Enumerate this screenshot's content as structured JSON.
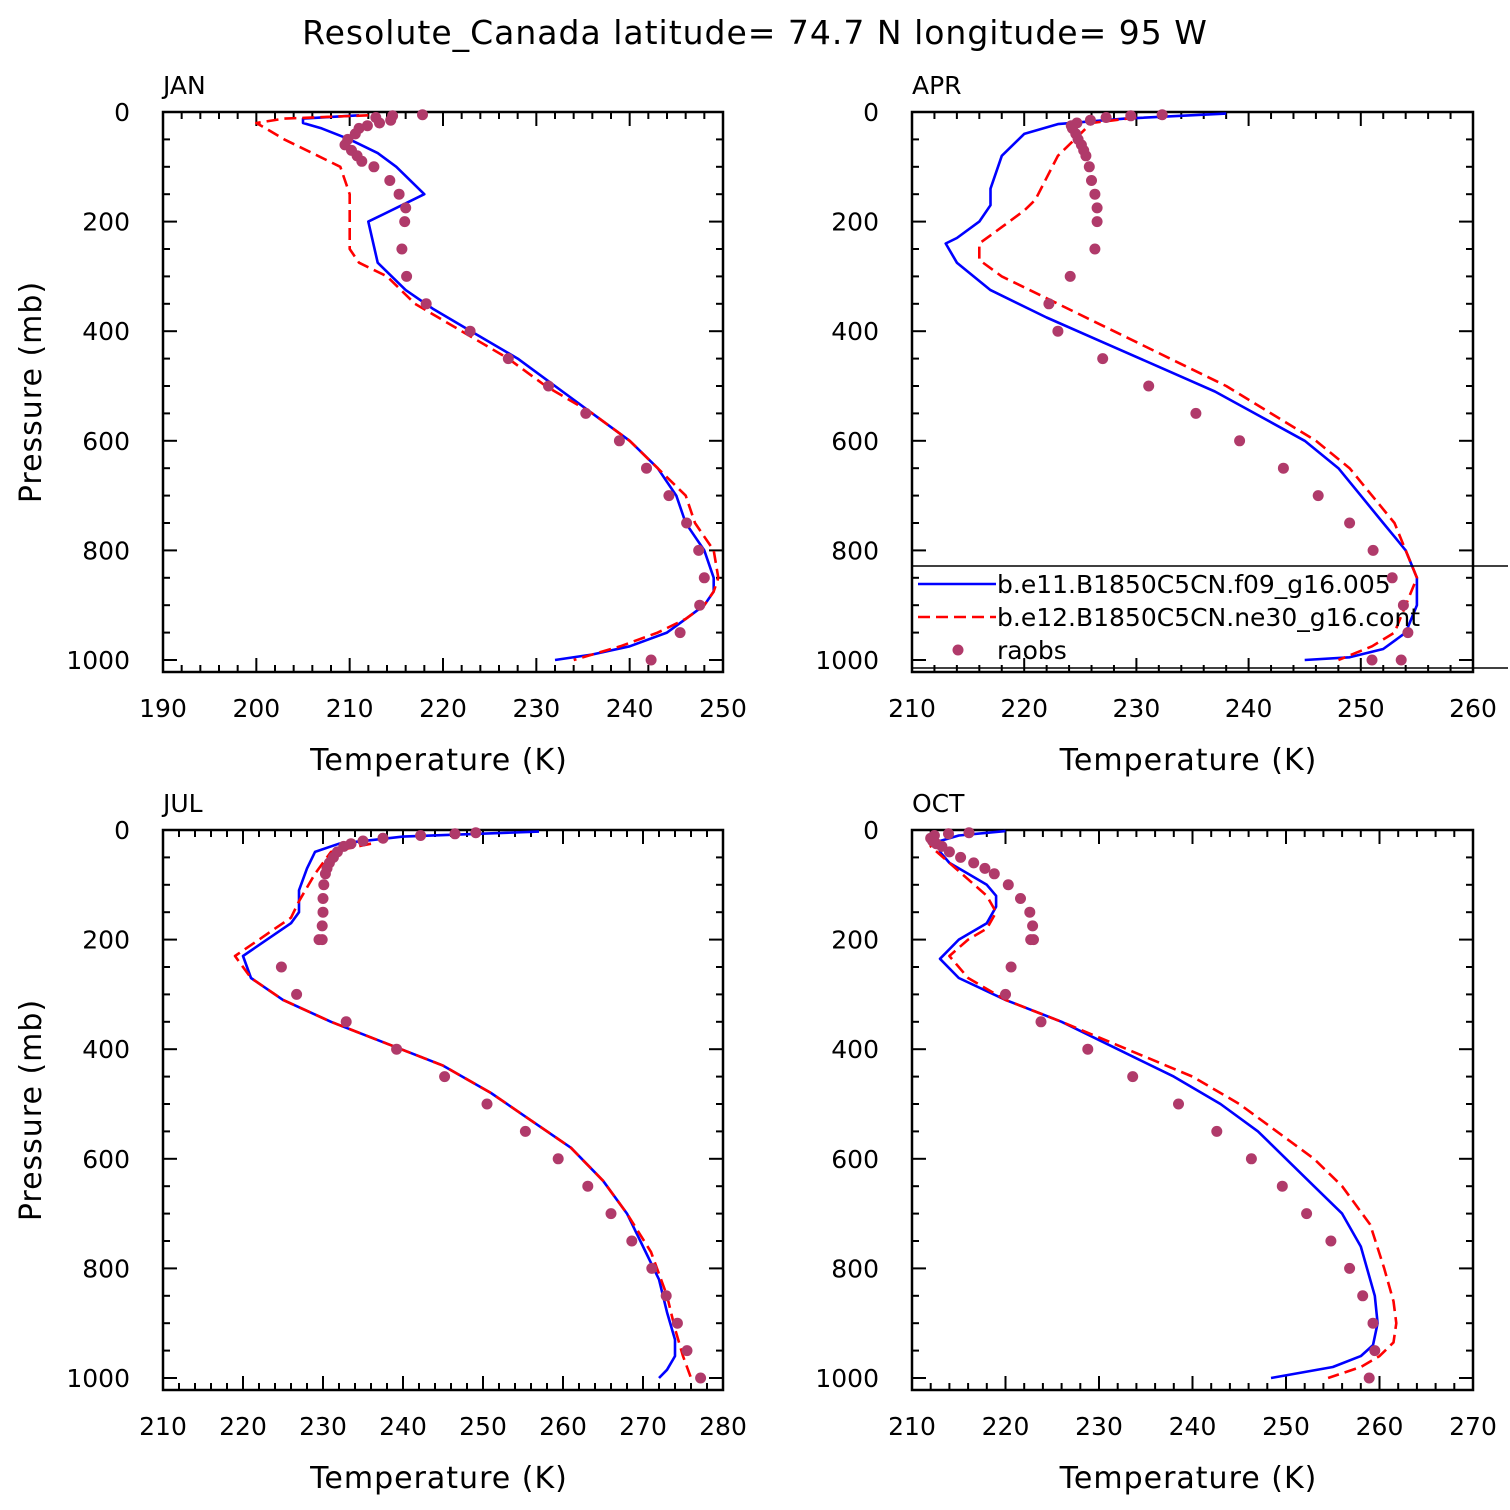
{
  "title": "Resolute_Canada  latitude= 74.7 N longitude= 95 W",
  "colors": {
    "model1": "#0000ff",
    "model2": "#ff0000",
    "raobs": "#b03a6a",
    "axis": "#000000"
  },
  "legend": {
    "items": [
      {
        "label": "b.e11.B1850C5CN.f09_g16.005",
        "style": "solid",
        "color": "#0000ff"
      },
      {
        "label": "b.e12.B1850C5CN.ne30_g16.cont",
        "style": "dashed",
        "color": "#ff0000"
      },
      {
        "label": "raobs",
        "style": "markers",
        "color": "#b03a6a"
      }
    ],
    "placement": "lower-right of APR panel"
  },
  "chart_data": [
    {
      "type": "line",
      "panel": "JAN",
      "xlabel": "Temperature (K)",
      "ylabel": "Pressure (mb)",
      "xlim": [
        190,
        250
      ],
      "ylim": [
        1000,
        0
      ],
      "xticks": [
        190,
        200,
        210,
        220,
        230,
        240,
        250
      ],
      "yticks": [
        0,
        200,
        400,
        600,
        800,
        1000
      ],
      "series": [
        {
          "name": "b.e11.B1850C5CN.f09_g16.005",
          "x": [
            211,
            205,
            205,
            207,
            210,
            213,
            215,
            218,
            212,
            213,
            216,
            219,
            223,
            228,
            232,
            236,
            240,
            243,
            245,
            246,
            247,
            248,
            249,
            249,
            248,
            246,
            244,
            240,
            236,
            232
          ],
          "y": [
            6,
            12,
            20,
            30,
            50,
            75,
            100,
            150,
            200,
            275,
            325,
            360,
            400,
            450,
            500,
            550,
            600,
            650,
            700,
            750,
            775,
            800,
            850,
            875,
            900,
            925,
            950,
            975,
            990,
            1000
          ]
        },
        {
          "name": "b.e12.B1850C5CN.ne30_g16.cont",
          "x": [
            212,
            203,
            200,
            201,
            203,
            206,
            209,
            210,
            210,
            210,
            211,
            214,
            217,
            222,
            227,
            231,
            236,
            240,
            243,
            246,
            247,
            248,
            249,
            249.5,
            249,
            248,
            246,
            243,
            239,
            234
          ],
          "y": [
            6,
            12,
            20,
            30,
            50,
            75,
            100,
            150,
            200,
            250,
            275,
            300,
            350,
            400,
            450,
            500,
            550,
            600,
            650,
            700,
            750,
            775,
            800,
            850,
            875,
            900,
            925,
            950,
            975,
            1000
          ]
        }
      ],
      "raobs": {
        "x": [
          217.8,
          214.6,
          212.8,
          214.4,
          213.2,
          211.9,
          211.0,
          210.6,
          209.8,
          209.5,
          210.2,
          210.8,
          211.3,
          212.6,
          214.3,
          215.3,
          216.0,
          215.9,
          215.6,
          216.1,
          218.2,
          222.9,
          227.0,
          231.3,
          235.3,
          238.9,
          241.8,
          244.2,
          246.1,
          247.4,
          248.0,
          247.5,
          245.4,
          242.3
        ],
        "y": [
          5,
          7,
          10,
          15,
          20,
          25,
          30,
          40,
          50,
          60,
          70,
          80,
          90,
          100,
          125,
          150,
          175,
          200,
          250,
          300,
          350,
          400,
          450,
          500,
          550,
          600,
          650,
          700,
          750,
          800,
          850,
          900,
          950,
          1000
        ]
      }
    },
    {
      "type": "line",
      "panel": "APR",
      "xlabel": "Temperature (K)",
      "ylabel": "",
      "xlim": [
        210,
        260
      ],
      "ylim": [
        1000,
        0
      ],
      "xticks": [
        210,
        220,
        230,
        240,
        250,
        260
      ],
      "yticks": [
        0,
        200,
        400,
        600,
        800,
        1000
      ],
      "series": [
        {
          "name": "b.e11.B1850C5CN.f09_g16.005",
          "x": [
            238,
            229,
            223,
            220,
            218,
            217,
            217,
            216,
            214,
            213,
            214,
            217,
            222,
            227,
            232,
            237,
            241,
            245,
            248,
            250,
            252,
            253,
            254,
            255,
            255,
            254,
            252,
            249,
            245
          ],
          "y": [
            3,
            12,
            22,
            40,
            80,
            140,
            170,
            200,
            230,
            240,
            275,
            325,
            375,
            420,
            465,
            510,
            555,
            600,
            650,
            700,
            750,
            775,
            800,
            850,
            900,
            950,
            980,
            995,
            1000
          ]
        },
        {
          "name": "b.e12.B1850C5CN.ne30_g16.cont",
          "x": [
            230,
            226,
            225,
            223,
            222,
            221,
            220,
            218,
            216,
            216,
            218,
            223,
            228,
            233,
            238,
            242,
            246,
            249,
            251,
            253,
            254,
            255,
            254,
            253,
            251,
            248
          ],
          "y": [
            10,
            20,
            40,
            80,
            120,
            160,
            180,
            210,
            240,
            270,
            300,
            350,
            400,
            450,
            500,
            550,
            600,
            650,
            700,
            750,
            800,
            850,
            900,
            950,
            975,
            1000
          ]
        }
      ],
      "raobs": {
        "x": [
          232.3,
          229.5,
          227.3,
          225.9,
          224.7,
          224.2,
          224.3,
          224.6,
          224.8,
          225.1,
          225.3,
          225.5,
          225.8,
          226.0,
          226.3,
          226.5,
          226.5,
          226.3,
          224.1,
          222.2,
          223.0,
          227.0,
          231.1,
          235.3,
          239.2,
          243.1,
          246.2,
          249.0,
          251.1,
          252.8,
          253.8,
          254.2,
          253.6,
          251.0
        ],
        "y": [
          5,
          7,
          10,
          15,
          20,
          25,
          30,
          40,
          50,
          60,
          70,
          80,
          100,
          125,
          150,
          175,
          200,
          250,
          300,
          350,
          400,
          450,
          500,
          550,
          600,
          650,
          700,
          750,
          800,
          850,
          900,
          950,
          1000,
          1000
        ]
      }
    },
    {
      "type": "line",
      "panel": "JUL",
      "xlabel": "Temperature (K)",
      "ylabel": "Pressure (mb)",
      "xlim": [
        210,
        280
      ],
      "ylim": [
        1000,
        0
      ],
      "xticks": [
        210,
        220,
        230,
        240,
        250,
        260,
        270,
        280
      ],
      "yticks": [
        0,
        200,
        400,
        600,
        800,
        1000
      ],
      "series": [
        {
          "name": "b.e11.B1850C5CN.f09_g16.005",
          "x": [
            257,
            240,
            232,
            229,
            228,
            227,
            227,
            226,
            223,
            220,
            221,
            225,
            231,
            238,
            245,
            251,
            256,
            261,
            265,
            268,
            270,
            272,
            273,
            274,
            274,
            273,
            272
          ],
          "y": [
            3,
            12,
            25,
            40,
            70,
            110,
            150,
            170,
            200,
            230,
            270,
            310,
            350,
            390,
            430,
            480,
            530,
            580,
            640,
            700,
            760,
            820,
            880,
            930,
            960,
            985,
            1000
          ]
        },
        {
          "name": "b.e12.B1850C5CN.ne30_g16.cont",
          "x": [
            236,
            231,
            229,
            227,
            226,
            224,
            222,
            219,
            221,
            225,
            231,
            238,
            245,
            251,
            256,
            261,
            265,
            268,
            271,
            273,
            274,
            275,
            276
          ],
          "y": [
            25,
            40,
            80,
            130,
            160,
            180,
            200,
            230,
            270,
            310,
            350,
            390,
            430,
            480,
            530,
            580,
            640,
            700,
            770,
            850,
            910,
            960,
            1000
          ]
        }
      ],
      "raobs": {
        "x": [
          249.1,
          246.5,
          242.2,
          237.5,
          235.0,
          233.5,
          232.6,
          231.8,
          231.3,
          230.8,
          230.5,
          230.3,
          230.1,
          230.0,
          230.0,
          229.9,
          229.9,
          229.5,
          224.8,
          226.7,
          232.9,
          239.2,
          245.2,
          250.5,
          255.3,
          259.4,
          263.1,
          266.0,
          268.6,
          271.1,
          272.9,
          274.3,
          275.5,
          277.2
        ],
        "y": [
          5,
          7,
          10,
          15,
          20,
          25,
          30,
          40,
          50,
          60,
          70,
          80,
          100,
          125,
          150,
          175,
          200,
          200,
          250,
          300,
          350,
          400,
          450,
          500,
          550,
          600,
          650,
          700,
          750,
          800,
          850,
          900,
          950,
          1000
        ]
      }
    },
    {
      "type": "line",
      "panel": "OCT",
      "xlabel": "Temperature (K)",
      "ylabel": "",
      "xlim": [
        210,
        270
      ],
      "ylim": [
        1000,
        0
      ],
      "xticks": [
        210,
        220,
        230,
        240,
        250,
        260,
        270
      ],
      "yticks": [
        0,
        200,
        400,
        600,
        800,
        1000
      ],
      "series": [
        {
          "name": "b.e11.B1850C5CN.f09_g16.005",
          "x": [
            220,
            215,
            213,
            213,
            214,
            216,
            218,
            219,
            219,
            218,
            215,
            213,
            215,
            220,
            226,
            232,
            238,
            243,
            247,
            250,
            253,
            256,
            258,
            259.5,
            259.8,
            259.3,
            258,
            255,
            248.4
          ],
          "y": [
            2,
            10,
            20,
            40,
            60,
            80,
            100,
            120,
            140,
            170,
            200,
            235,
            270,
            310,
            350,
            400,
            450,
            500,
            550,
            600,
            650,
            700,
            760,
            850,
            900,
            940,
            960,
            980,
            1000
          ]
        },
        {
          "name": "b.e12.B1850C5CN.ne30_g16.cont",
          "x": [
            212,
            212,
            214,
            216,
            218,
            219,
            218,
            216,
            214,
            216,
            220,
            226,
            233,
            240,
            245,
            249,
            253,
            256,
            259,
            260.5,
            261.5,
            261.8,
            261.5,
            260,
            258,
            254.5
          ],
          "y": [
            10,
            30,
            60,
            90,
            120,
            150,
            180,
            200,
            230,
            270,
            310,
            350,
            400,
            450,
            500,
            550,
            600,
            650,
            720,
            800,
            860,
            900,
            935,
            960,
            980,
            1000
          ]
        }
      ],
      "raobs": {
        "x": [
          216.1,
          213.9,
          212.4,
          212.0,
          212.2,
          212.6,
          213.2,
          214.0,
          215.2,
          216.6,
          217.8,
          218.8,
          220.3,
          221.6,
          222.6,
          222.9,
          223.0,
          222.7,
          220.6,
          220.0,
          223.8,
          228.8,
          233.6,
          238.5,
          242.6,
          246.3,
          249.6,
          252.2,
          254.8,
          256.8,
          258.2,
          259.3,
          259.5,
          258.9
        ],
        "y": [
          5,
          7,
          10,
          15,
          20,
          25,
          30,
          40,
          50,
          60,
          70,
          80,
          100,
          125,
          150,
          175,
          200,
          200,
          250,
          300,
          350,
          400,
          450,
          500,
          550,
          600,
          650,
          700,
          750,
          800,
          850,
          900,
          950,
          1000
        ]
      }
    }
  ]
}
